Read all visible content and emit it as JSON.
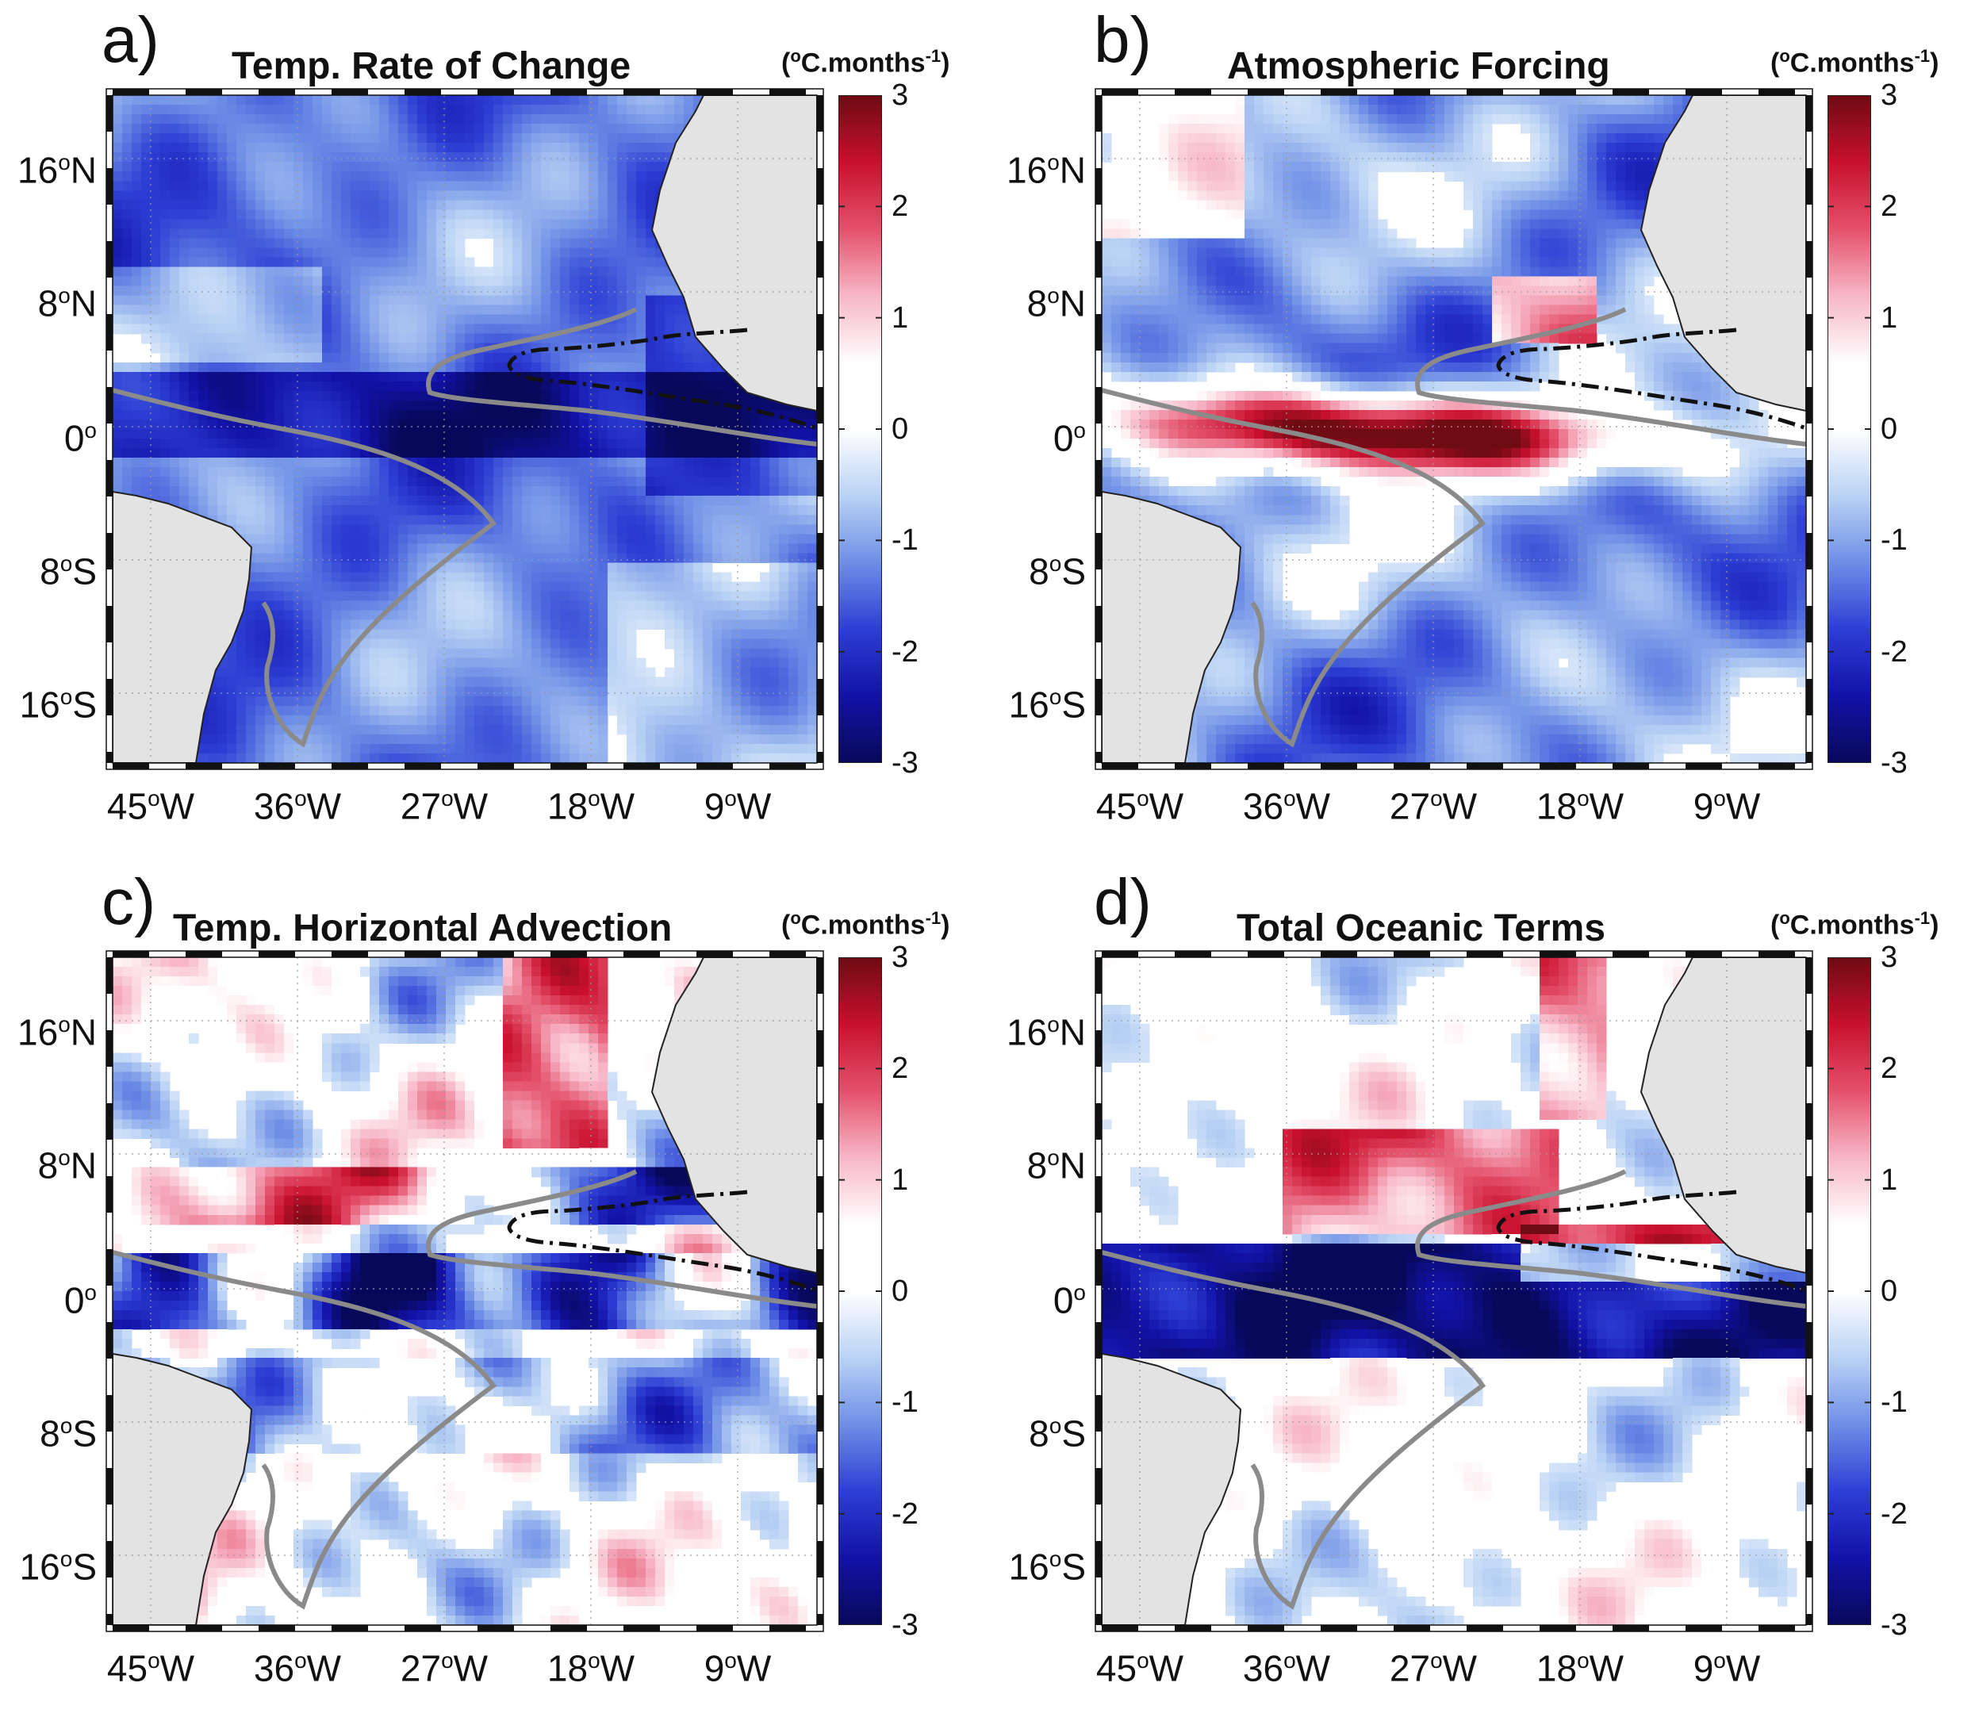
{
  "colors": {
    "land": "#e3e3e3",
    "gray_contour": "#8a8a8a",
    "dash_contour": "#111111",
    "ocean_bg": "#ffffff",
    "colormap": [
      "#08085a",
      "#1212a8",
      "#2d3ed4",
      "#6e8ee6",
      "#b9d2f4",
      "#ffffff",
      "#ffffff",
      "#f7b6c7",
      "#e4506a",
      "#c8102e",
      "#6e0b13"
    ]
  },
  "shared": {
    "units_prefix": "(",
    "units_deg": "o",
    "units_main": "C.months",
    "units_exp": "-1",
    "units_suffix": ")",
    "lat_ticks": [
      {
        "num": "16",
        "hemi": "N"
      },
      {
        "num": "8",
        "hemi": "N"
      },
      {
        "num": "0",
        "hemi": ""
      },
      {
        "num": "8",
        "hemi": "S"
      },
      {
        "num": "16",
        "hemi": "S"
      }
    ],
    "lon_ticks": [
      {
        "num": "45",
        "hemi": "W"
      },
      {
        "num": "36",
        "hemi": "W"
      },
      {
        "num": "27",
        "hemi": "W"
      },
      {
        "num": "18",
        "hemi": "W"
      },
      {
        "num": "9",
        "hemi": "W"
      }
    ],
    "colorbar_ticks": [
      "3",
      "2",
      "1",
      "0",
      "-1",
      "-2",
      "-3"
    ],
    "colorbar_range": [
      -3,
      3
    ]
  },
  "panels": [
    {
      "letter": "a)",
      "title": "Temp. Rate of Change",
      "field": "rate"
    },
    {
      "letter": "b)",
      "title": "Atmospheric Forcing",
      "field": "atm"
    },
    {
      "letter": "c)",
      "title": "Temp. Horizontal Advection",
      "field": "adv"
    },
    {
      "letter": "d)",
      "title": "Total Oceanic Terms",
      "field": "ocean"
    }
  ]
}
